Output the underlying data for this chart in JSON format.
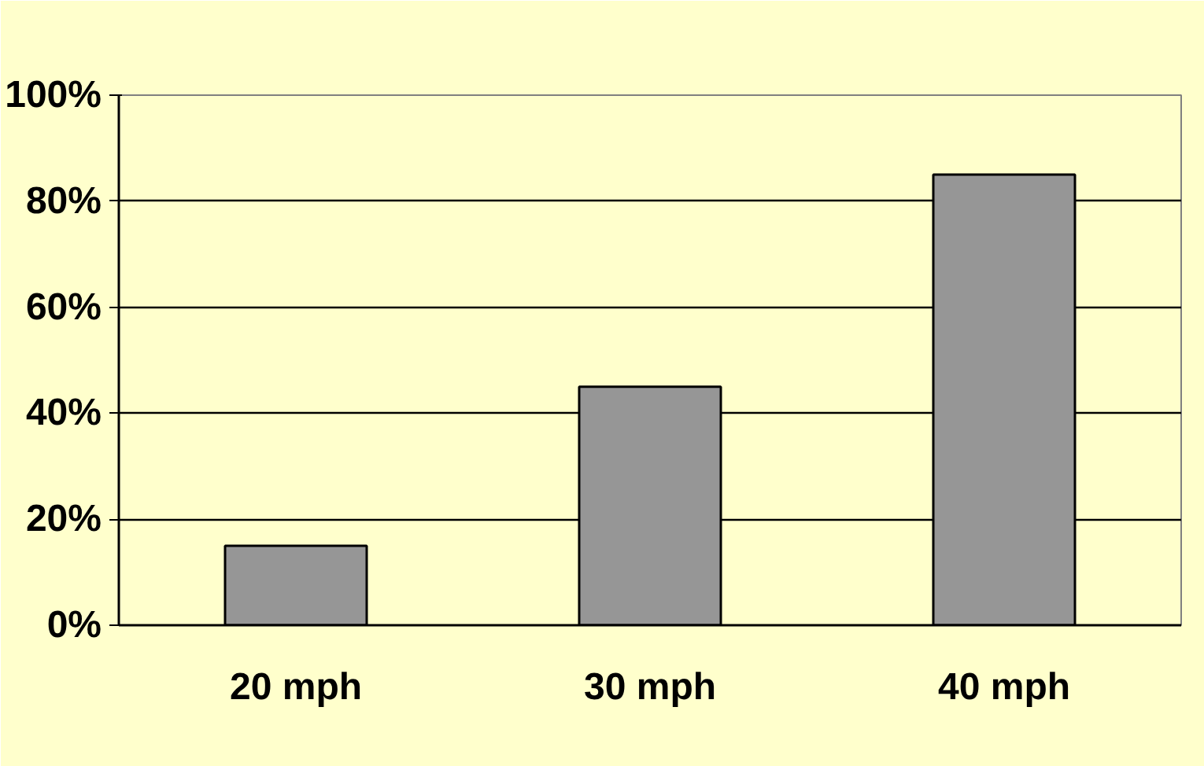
{
  "chart_data": {
    "type": "bar",
    "categories": [
      "20 mph",
      "30 mph",
      "40 mph"
    ],
    "values": [
      15,
      45,
      85
    ],
    "color": "#969696",
    "ylim": [
      0,
      100
    ],
    "yticks": [
      {
        "value": 0,
        "label": "0%"
      },
      {
        "value": 20,
        "label": "20%"
      },
      {
        "value": 40,
        "label": "40%"
      },
      {
        "value": 60,
        "label": "60%"
      },
      {
        "value": 80,
        "label": "80%"
      },
      {
        "value": 100,
        "label": "100%"
      }
    ],
    "grid": "y"
  }
}
